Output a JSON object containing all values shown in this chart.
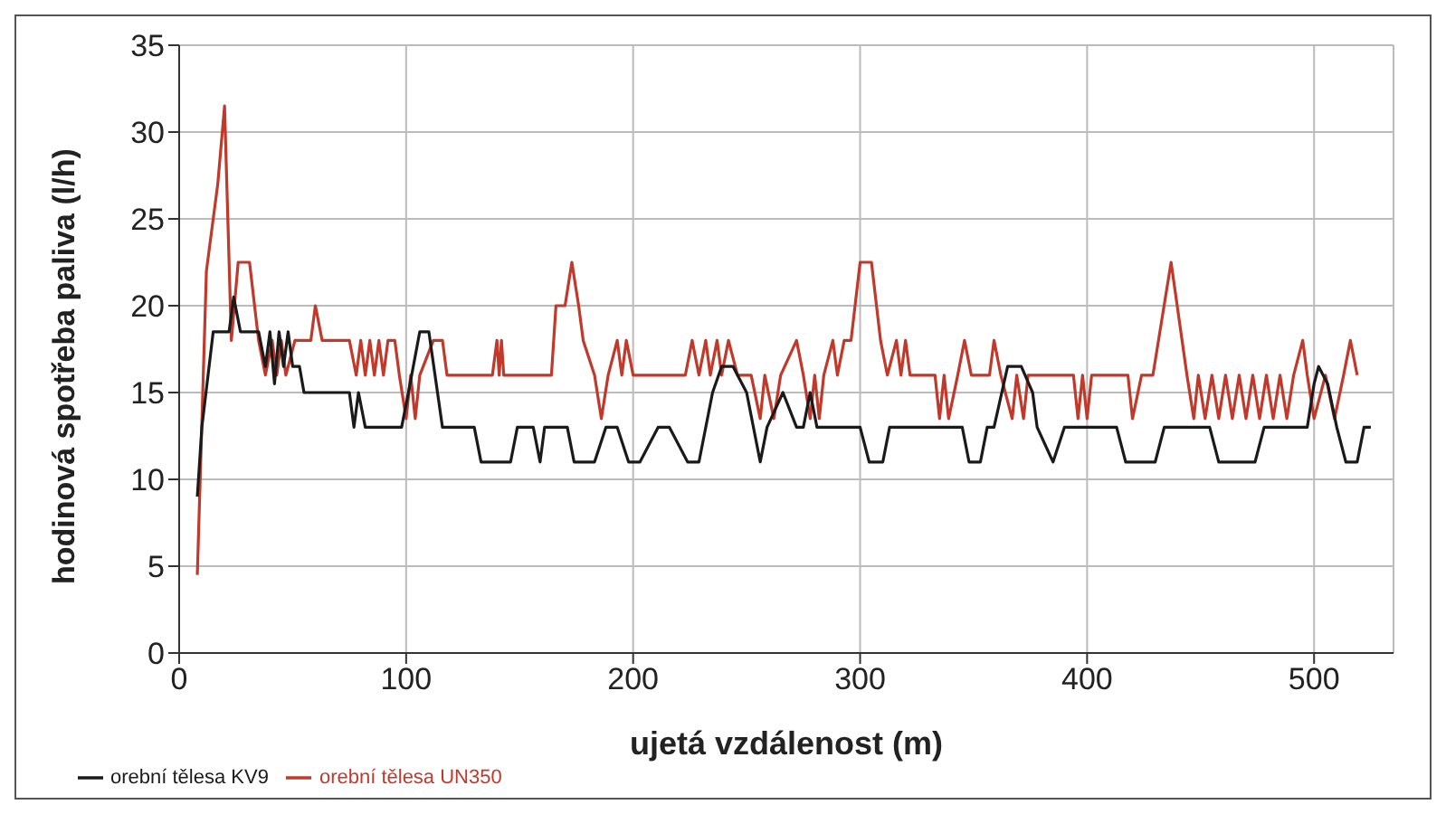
{
  "chart_data": {
    "type": "line",
    "xlabel": "ujetá vzdálenost (m)",
    "ylabel": "hodinová spotřeba paliva (l/h)",
    "xlim": [
      0,
      535
    ],
    "xticks": [
      0,
      100,
      200,
      300,
      400,
      500
    ],
    "ylim": [
      0,
      35
    ],
    "yticks": [
      0,
      5,
      10,
      15,
      20,
      25,
      30,
      35
    ],
    "grid": true,
    "legend": "bottom left",
    "marker": "none",
    "line_style": "solid",
    "series": [
      {
        "name": "orební tělesa UN350",
        "color": "#c0392b",
        "x": [
          8,
          12,
          17,
          20,
          23,
          26,
          31,
          35,
          38,
          41,
          43,
          45,
          47,
          51,
          58,
          60,
          63,
          75,
          78,
          80,
          82,
          84,
          86,
          88,
          90,
          92,
          95,
          97,
          100,
          102,
          104,
          106,
          112,
          116,
          118,
          138,
          140,
          141,
          142,
          143,
          164,
          166,
          170,
          173,
          176,
          178,
          183,
          186,
          189,
          193,
          195,
          197,
          200,
          223,
          226,
          229,
          232,
          234,
          237,
          239,
          242,
          246,
          252,
          256,
          258,
          262,
          265,
          272,
          275,
          278,
          280,
          282,
          284,
          288,
          290,
          293,
          296,
          300,
          305,
          309,
          312,
          316,
          318,
          320,
          322,
          333,
          335,
          337,
          339,
          343,
          346,
          349,
          357,
          359,
          362,
          367,
          369,
          372,
          374,
          380,
          394,
          396,
          398,
          400,
          402,
          418,
          420,
          424,
          429,
          437,
          444,
          447,
          449,
          452,
          455,
          458,
          461,
          464,
          467,
          470,
          473,
          476,
          479,
          482,
          485,
          488,
          491,
          495,
          497,
          500,
          505,
          509,
          513,
          516,
          519
        ],
        "values": [
          4.5,
          22,
          27,
          31.5,
          18,
          22.5,
          22.5,
          18,
          16,
          18,
          16,
          18,
          16,
          18,
          18,
          20,
          18,
          18,
          16,
          18,
          16,
          18,
          16,
          18,
          16,
          18,
          18,
          16,
          13.5,
          16,
          13.5,
          16,
          18,
          18,
          16,
          16,
          18,
          16,
          18,
          16,
          16,
          20,
          20,
          22.5,
          20,
          18,
          16,
          13.5,
          16,
          18,
          16,
          18,
          16,
          16,
          18,
          16,
          18,
          16,
          18,
          16,
          18,
          16,
          16,
          13.5,
          16,
          13.5,
          16,
          18,
          16,
          13.5,
          16,
          13.5,
          16,
          18,
          16,
          18,
          18,
          22.5,
          22.5,
          18,
          16,
          18,
          16,
          18,
          16,
          16,
          13.5,
          16,
          13.5,
          16,
          18,
          16,
          16,
          18,
          16,
          13.5,
          16,
          13.5,
          16,
          16,
          16,
          13.5,
          16,
          13.5,
          16,
          16,
          13.5,
          16,
          16,
          22.5,
          16,
          13.5,
          16,
          13.5,
          16,
          13.5,
          16,
          13.5,
          16,
          13.5,
          16,
          13.5,
          16,
          13.5,
          16,
          13.5,
          16,
          18,
          16,
          13.5,
          16,
          13.5,
          16,
          18,
          16
        ]
      },
      {
        "name": "orební tělesa KV9",
        "color": "#1a1a1a",
        "x": [
          8,
          10,
          15,
          22,
          24,
          27,
          35,
          38,
          40,
          42,
          44,
          46,
          48,
          50,
          53,
          55,
          57,
          75,
          77,
          79,
          82,
          98,
          101,
          106,
          110,
          116,
          130,
          133,
          146,
          149,
          156,
          159,
          161,
          171,
          174,
          183,
          188,
          193,
          198,
          203,
          211,
          216,
          224,
          229,
          235,
          239,
          244,
          250,
          256,
          259,
          266,
          269,
          272,
          275,
          278,
          281,
          300,
          304,
          310,
          313,
          345,
          348,
          353,
          356,
          359,
          365,
          371,
          376,
          378,
          385,
          390,
          413,
          417,
          430,
          434,
          454,
          458,
          474,
          478,
          497,
          500,
          502,
          506,
          510,
          514,
          519,
          522,
          525
        ],
        "values": [
          9,
          13,
          18.5,
          18.5,
          20.5,
          18.5,
          18.5,
          16.5,
          18.5,
          15.5,
          18.5,
          16.5,
          18.5,
          16.5,
          16.5,
          15,
          15,
          15,
          13,
          15,
          13,
          13,
          15,
          18.5,
          18.5,
          13,
          13,
          11,
          11,
          13,
          13,
          11,
          13,
          13,
          11,
          11,
          13,
          13,
          11,
          11,
          13,
          13,
          11,
          11,
          15,
          16.5,
          16.5,
          15,
          11,
          13,
          15,
          14,
          13,
          13,
          15,
          13,
          13,
          11,
          11,
          13,
          13,
          11,
          11,
          13,
          13,
          16.5,
          16.5,
          15,
          13,
          11,
          13,
          13,
          11,
          11,
          13,
          13,
          11,
          11,
          13,
          13,
          15.5,
          16.5,
          15.5,
          13,
          11,
          11,
          13,
          13
        ]
      }
    ]
  }
}
